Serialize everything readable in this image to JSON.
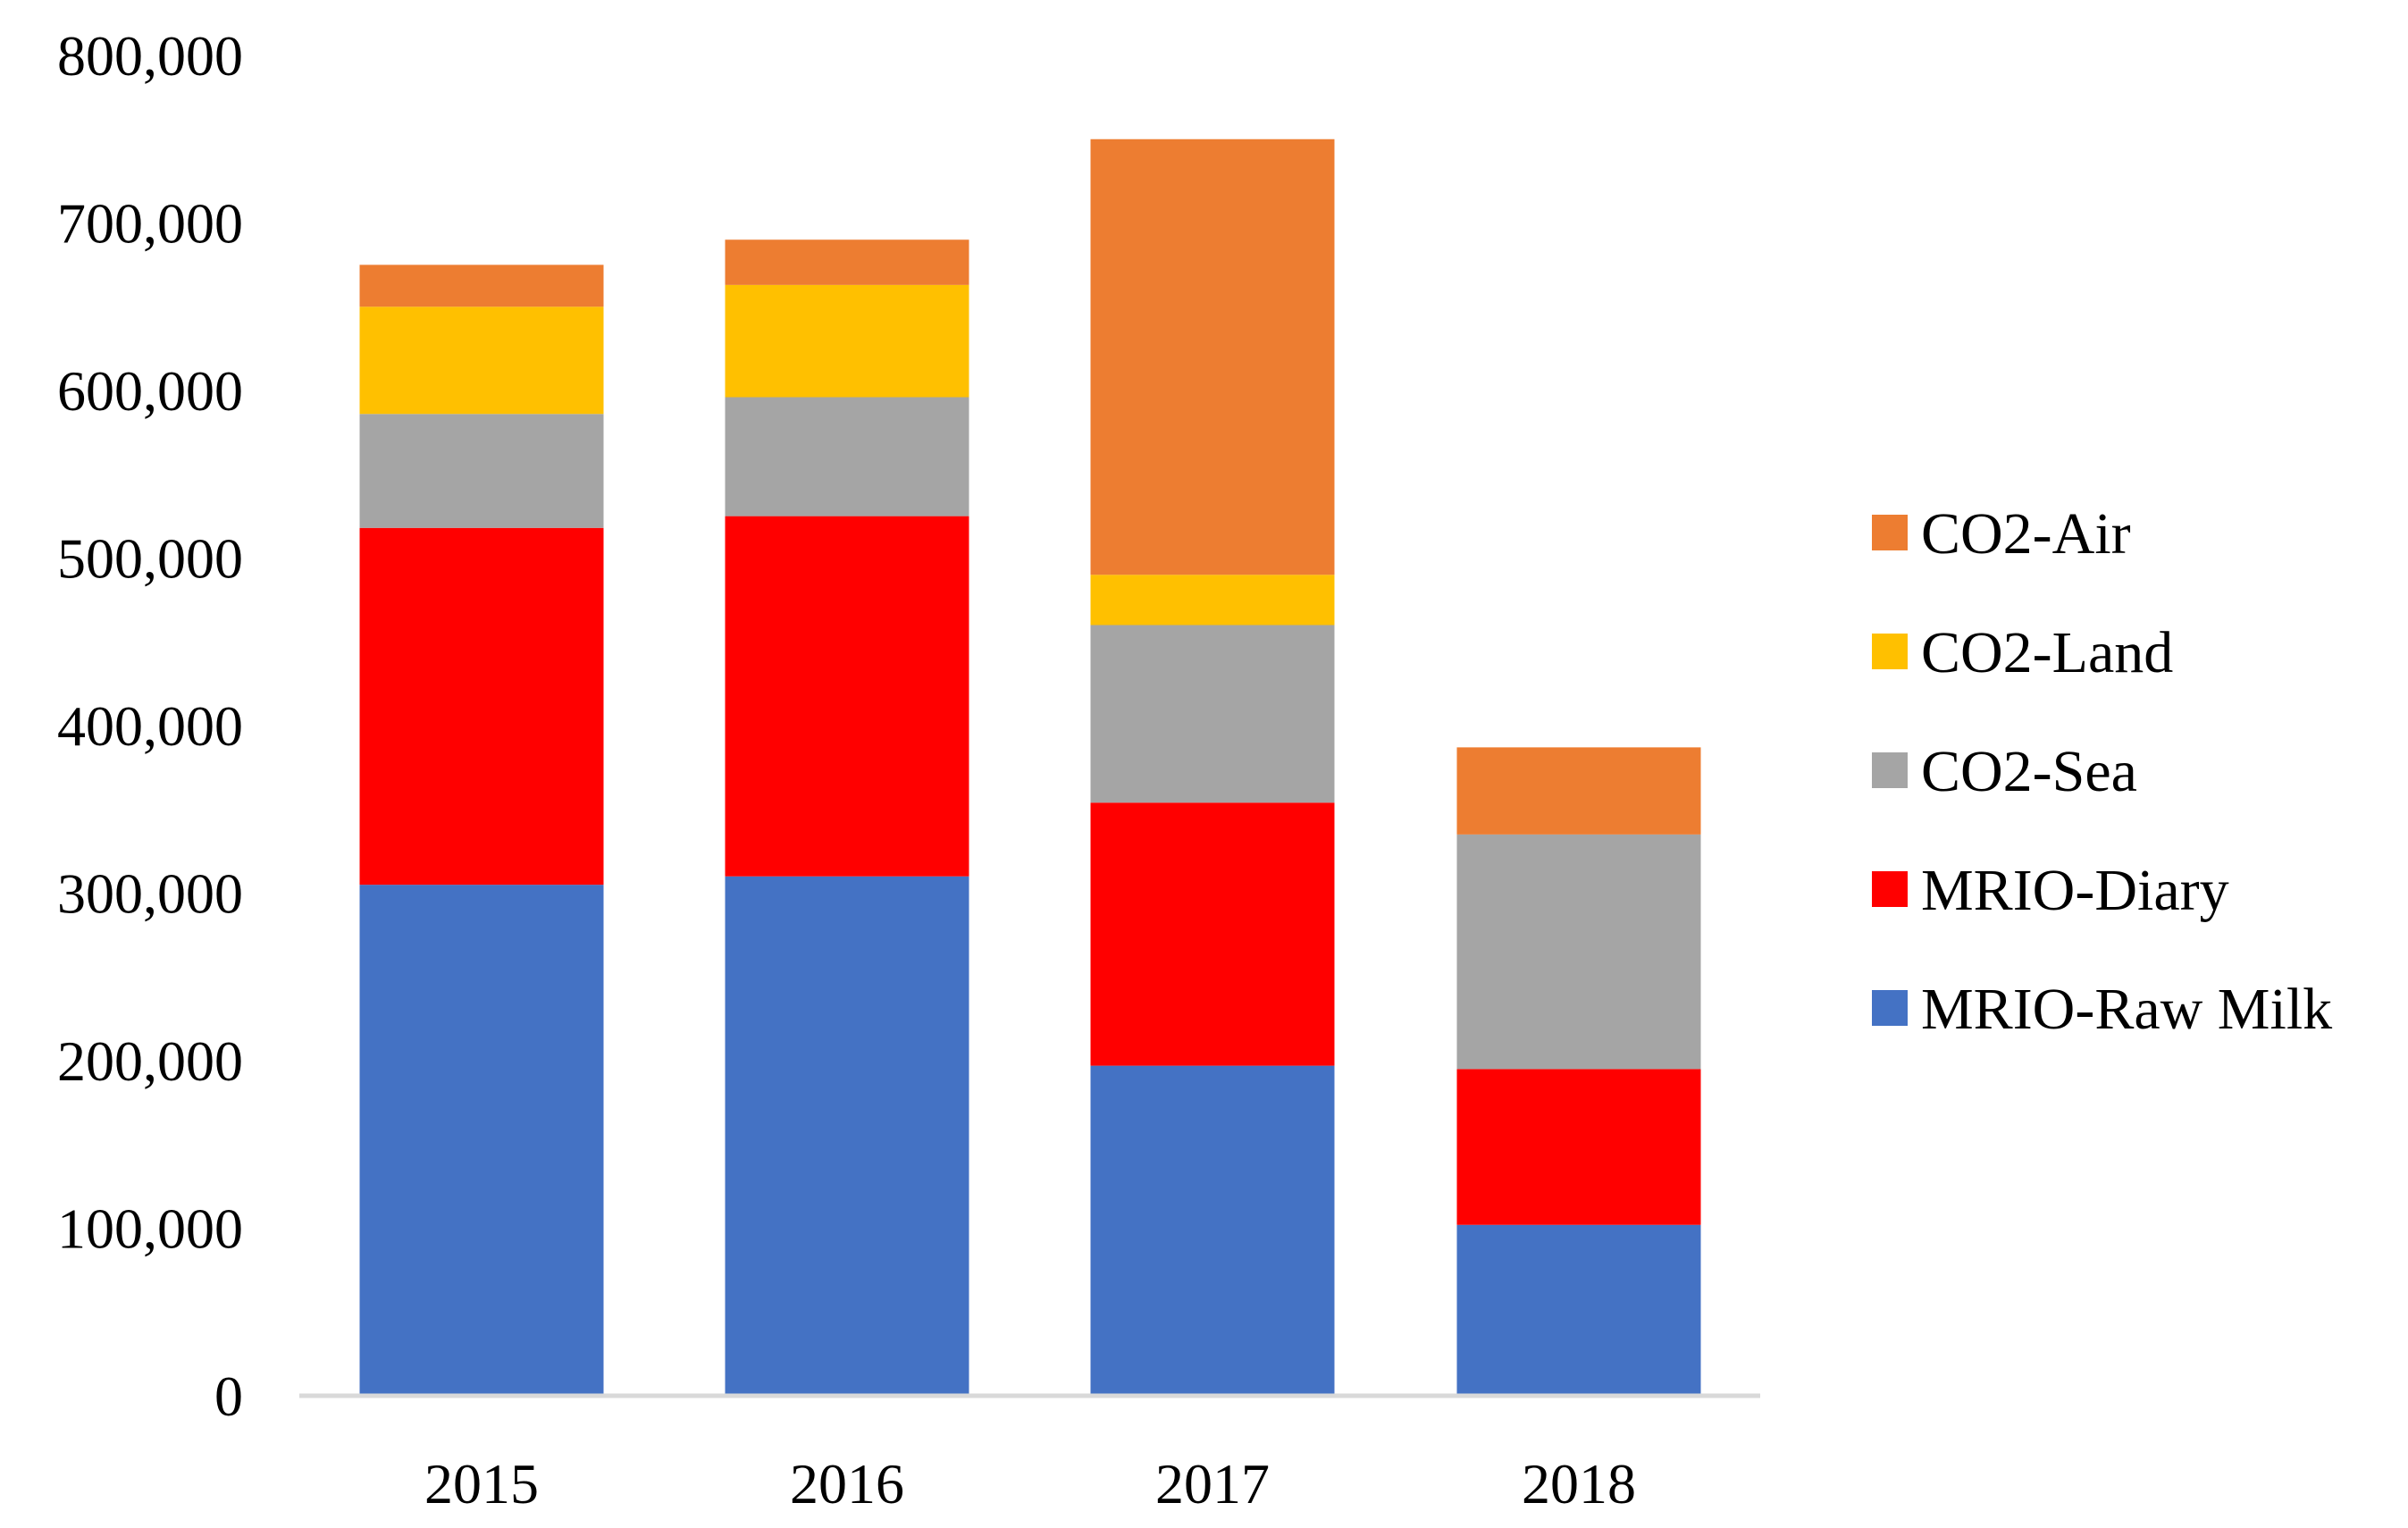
{
  "chart_data": {
    "type": "bar",
    "stacked": true,
    "title": "",
    "xlabel": "",
    "ylabel": "",
    "categories": [
      "2015",
      "2016",
      "2017",
      "2018"
    ],
    "ylim": [
      0,
      800000
    ],
    "y_ticks": [
      0,
      100000,
      200000,
      300000,
      400000,
      500000,
      600000,
      700000,
      800000
    ],
    "y_tick_labels": [
      "0",
      "100,000",
      "200,000",
      "300,000",
      "400,000",
      "500,000",
      "600,000",
      "700,000",
      "800,000"
    ],
    "grid": false,
    "legend_position": "right",
    "series": [
      {
        "name": "MRIO-Raw Milk",
        "color": "#4472C4",
        "values": [
          305000,
          310000,
          197000,
          102000
        ]
      },
      {
        "name": "MRIO-Diary",
        "color": "#FF0000",
        "values": [
          213000,
          215000,
          157000,
          93000
        ]
      },
      {
        "name": "CO2-Sea",
        "color": "#A5A5A5",
        "values": [
          68000,
          71000,
          106000,
          140000
        ]
      },
      {
        "name": "CO2-Land",
        "color": "#FFC000",
        "values": [
          64000,
          67000,
          30000,
          0
        ]
      },
      {
        "name": "CO2-Air",
        "color": "#ED7D31",
        "values": [
          25000,
          27000,
          260000,
          52000
        ]
      }
    ],
    "legend_order": [
      "CO2-Air",
      "CO2-Land",
      "CO2-Sea",
      "MRIO-Diary",
      "MRIO-Raw Milk"
    ]
  }
}
